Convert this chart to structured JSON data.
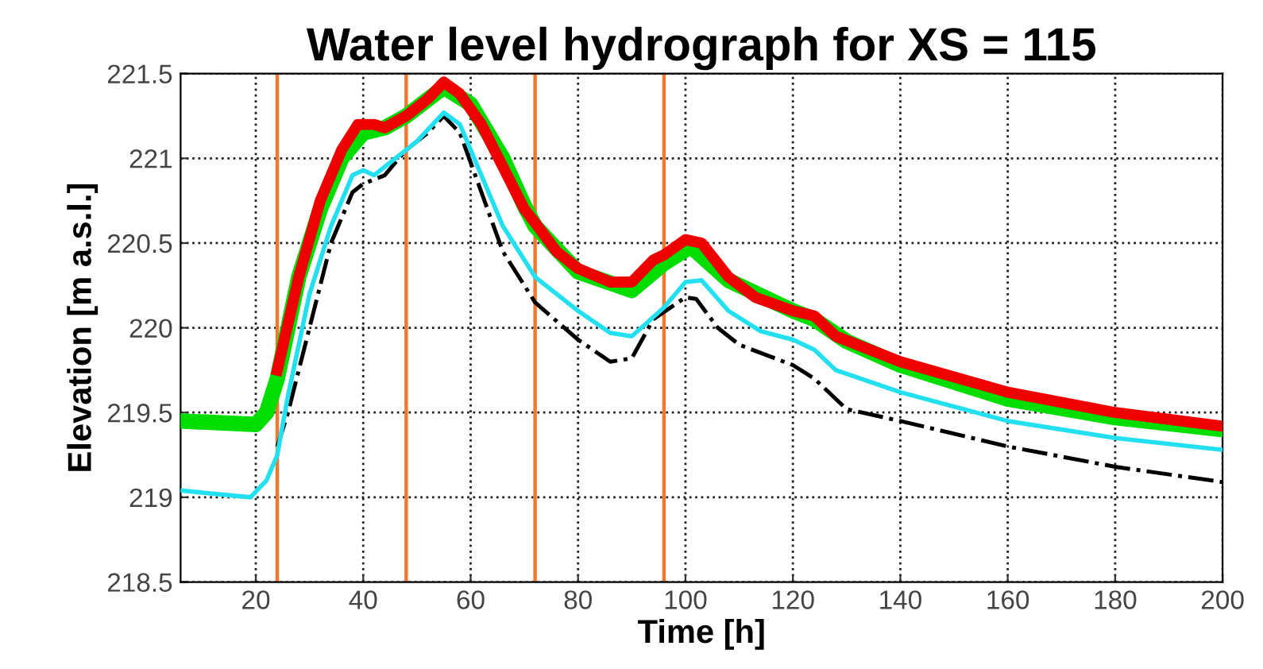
{
  "chart_data": {
    "type": "line",
    "title": "Water level hydrograph for XS = 115",
    "xlabel": "Time [h]",
    "ylabel": "Elevation [m a.s.l.]",
    "xlim": [
      6,
      200
    ],
    "xticks": [
      20,
      40,
      60,
      80,
      100,
      120,
      140,
      160,
      180,
      200
    ],
    "ylim": [
      218.5,
      221.5
    ],
    "yticks": [
      218.5,
      219,
      219.5,
      220,
      220.5,
      221,
      221.5
    ],
    "grid": true,
    "legend": false,
    "series": [
      {
        "color": "#00dd00",
        "line_style": "solid",
        "x": [
          6,
          20,
          22,
          24,
          28,
          32,
          36,
          40,
          44,
          48,
          55,
          60,
          66,
          70,
          72,
          80,
          90,
          96,
          101,
          108,
          120,
          124,
          130,
          140,
          160,
          180,
          200
        ],
        "values": [
          219.45,
          219.43,
          219.5,
          219.7,
          220.3,
          220.7,
          221.0,
          221.15,
          221.18,
          221.25,
          221.42,
          221.32,
          221.0,
          220.72,
          220.6,
          220.33,
          220.22,
          220.38,
          220.48,
          220.28,
          220.1,
          220.05,
          219.92,
          219.78,
          219.58,
          219.47,
          219.4
        ]
      },
      {
        "color": "#ee0000",
        "line_style": "solid",
        "x": [
          24,
          28,
          32,
          36,
          39,
          42,
          44,
          48,
          52,
          55,
          58,
          62,
          66,
          70,
          72,
          76,
          80,
          86,
          90,
          94,
          96,
          100,
          103,
          108,
          113,
          120,
          124,
          128,
          140,
          160,
          180,
          200
        ],
        "values": [
          219.75,
          220.3,
          220.75,
          221.05,
          221.2,
          221.2,
          221.18,
          221.25,
          221.35,
          221.45,
          221.38,
          221.2,
          220.95,
          220.7,
          220.62,
          220.45,
          220.35,
          220.27,
          220.27,
          220.4,
          220.43,
          220.52,
          220.5,
          220.3,
          220.18,
          220.1,
          220.07,
          219.95,
          219.8,
          219.62,
          219.5,
          219.42
        ]
      },
      {
        "color": "#000000",
        "line_style": "dashdot",
        "x": [
          24,
          26,
          30,
          34,
          38,
          40,
          44,
          48,
          52,
          55,
          58,
          62,
          66,
          72,
          80,
          86,
          90,
          94,
          100,
          102,
          106,
          110,
          120,
          124,
          130,
          140,
          160,
          180,
          200
        ],
        "values": [
          219.3,
          219.5,
          220.0,
          220.5,
          220.8,
          220.85,
          220.9,
          221.05,
          221.15,
          221.25,
          221.15,
          220.8,
          220.45,
          220.15,
          219.93,
          219.8,
          219.82,
          220.05,
          220.18,
          220.17,
          220.0,
          219.9,
          219.78,
          219.7,
          219.52,
          219.45,
          219.3,
          219.18,
          219.09
        ]
      },
      {
        "color": "#22e0f0",
        "line_style": "solid",
        "x": [
          6,
          19,
          22,
          24,
          26,
          30,
          34,
          38,
          40,
          42,
          46,
          50,
          55,
          58,
          62,
          66,
          72,
          80,
          86,
          90,
          96,
          100,
          103,
          108,
          114,
          120,
          124,
          128,
          140,
          160,
          180,
          200
        ],
        "values": [
          219.04,
          219.0,
          219.1,
          219.25,
          219.6,
          220.2,
          220.6,
          220.9,
          220.93,
          220.9,
          221.0,
          221.1,
          221.27,
          221.2,
          220.9,
          220.6,
          220.3,
          220.1,
          219.97,
          219.95,
          220.12,
          220.27,
          220.28,
          220.1,
          219.98,
          219.93,
          219.87,
          219.75,
          219.62,
          219.45,
          219.35,
          219.28
        ]
      }
    ],
    "ref_lines": [
      {
        "axis": "x",
        "value": 24,
        "color": "#f07830"
      },
      {
        "axis": "x",
        "value": 48,
        "color": "#f07830"
      },
      {
        "axis": "x",
        "value": 72,
        "color": "#f07830"
      },
      {
        "axis": "x",
        "value": 96,
        "color": "#f07830"
      }
    ]
  }
}
